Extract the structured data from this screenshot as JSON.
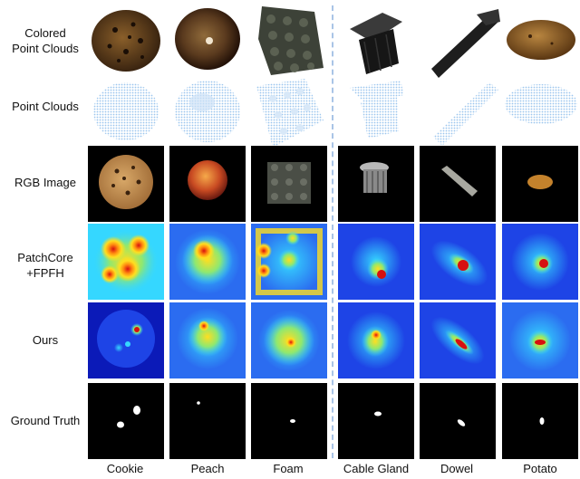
{
  "figure": {
    "row_labels": [
      {
        "line1": "Colored",
        "line2": "Point Clouds"
      },
      {
        "line1": "Point Clouds",
        "line2": ""
      },
      {
        "line1": "RGB Image",
        "line2": ""
      },
      {
        "line1": "PatchCore",
        "line2": "+FPFH"
      },
      {
        "line1": "Ours",
        "line2": ""
      },
      {
        "line1": "Ground Truth",
        "line2": ""
      }
    ],
    "columns": [
      "Cookie",
      "Peach",
      "Foam",
      "Cable Gland",
      "Dowel",
      "Potato"
    ],
    "colors": {
      "point_cloud": "#9cc6ee",
      "divider": "#a9c4e6",
      "heat_low": "#0b2bd6",
      "heat_mid": "#35d7ff",
      "heat_high": "#ffde20",
      "heat_peak": "#d71010"
    }
  }
}
